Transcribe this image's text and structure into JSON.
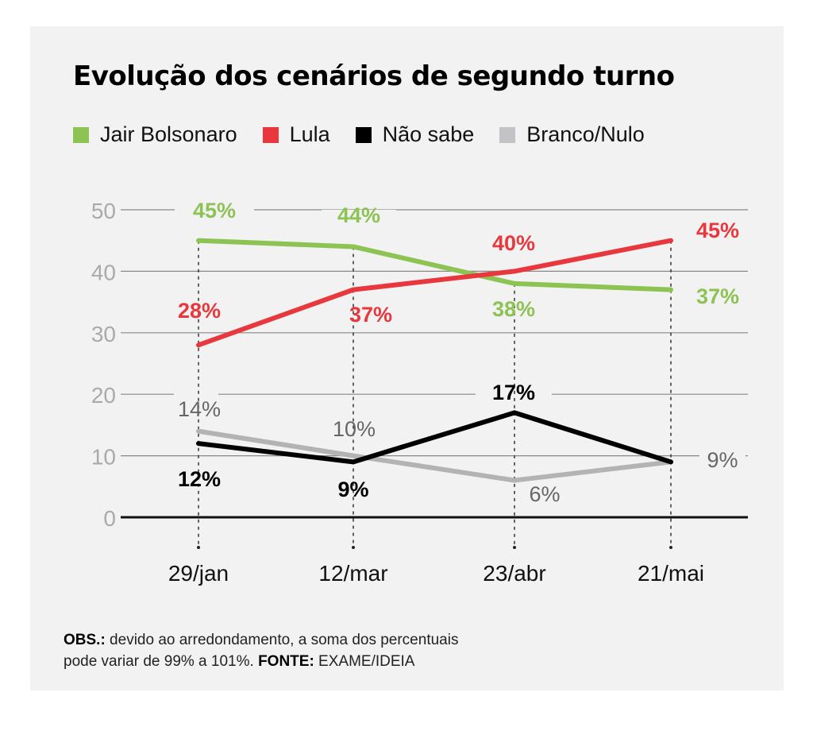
{
  "chart_data": {
    "type": "line",
    "title": "Evolução dos cenários de segundo turno",
    "xlabel": "",
    "ylabel": "",
    "categories": [
      "29/jan",
      "12/mar",
      "23/abr",
      "21/mai"
    ],
    "ylim": [
      0,
      50
    ],
    "yticks": [
      0,
      10,
      20,
      30,
      40,
      50
    ],
    "grid": true,
    "legend_position": "top-left",
    "series": [
      {
        "name": "Jair Bolsonaro",
        "color": "#8dc353",
        "values": [
          45,
          44,
          38,
          37
        ],
        "labels": [
          "45%",
          "44%",
          "38%",
          "37%"
        ]
      },
      {
        "name": "Lula",
        "color": "#e8383d",
        "values": [
          28,
          37,
          40,
          45
        ],
        "labels": [
          "28%",
          "37%",
          "40%",
          "45%"
        ]
      },
      {
        "name": "Não sabe",
        "color": "#000000",
        "values": [
          12,
          9,
          17,
          9
        ],
        "labels": [
          "12%",
          "9%",
          "17%",
          "9%"
        ]
      },
      {
        "name": "Branco/Nulo",
        "color": "#b3b3b5",
        "values": [
          14,
          10,
          6,
          9
        ],
        "labels": [
          "14%",
          "10%",
          "6%",
          "9%"
        ]
      }
    ]
  },
  "footnote": {
    "obs_label": "OBS.:",
    "obs_text": " devido ao arredondamento, a soma dos percentuais",
    "line2_text": "pode variar de 99% a 101%. ",
    "source_label": "FONTE:",
    "source_text": " EXAME/IDEIA"
  },
  "colors": {
    "background": "#f2f2f2",
    "grid": "#888888",
    "tick_label": "#aaaaaa",
    "branco_label": "#666666"
  }
}
